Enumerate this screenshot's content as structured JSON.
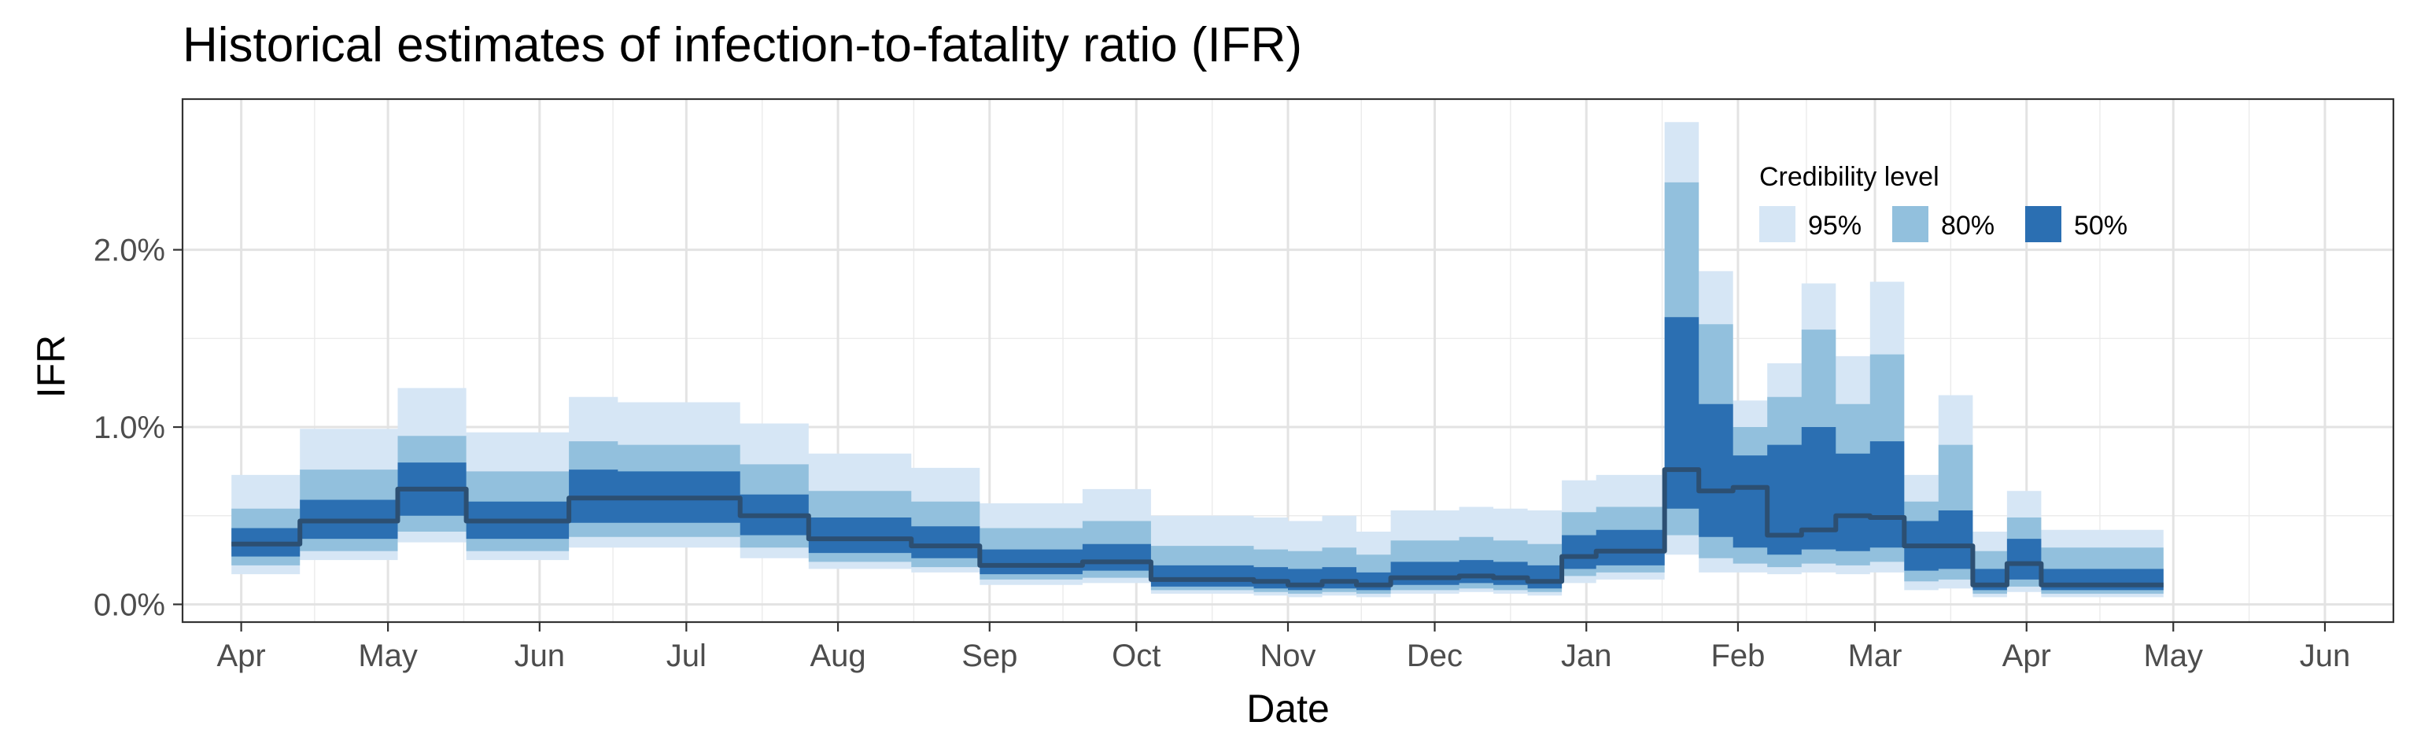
{
  "chart_data": {
    "type": "area",
    "title": "Historical estimates of infection-to-fatality ratio (IFR)",
    "xlabel": "Date",
    "ylabel": "IFR",
    "ylim": [
      -0.001,
      0.0285
    ],
    "xlim": [
      "2020-03-20",
      "2021-06-15"
    ],
    "grid": true,
    "legend": {
      "title": "Credibility level",
      "placement": "top-right"
    },
    "y_ticks": [
      {
        "value": 0.0,
        "label": "0.0%"
      },
      {
        "value": 0.01,
        "label": "1.0%"
      },
      {
        "value": 0.02,
        "label": "2.0%"
      }
    ],
    "x_ticks": [
      {
        "date": "2020-04-01",
        "label": "Apr"
      },
      {
        "date": "2020-05-01",
        "label": "May"
      },
      {
        "date": "2020-06-01",
        "label": "Jun"
      },
      {
        "date": "2020-07-01",
        "label": "Jul"
      },
      {
        "date": "2020-08-01",
        "label": "Aug"
      },
      {
        "date": "2020-09-01",
        "label": "Sep"
      },
      {
        "date": "2020-10-01",
        "label": "Oct"
      },
      {
        "date": "2020-11-01",
        "label": "Nov"
      },
      {
        "date": "2020-12-01",
        "label": "Dec"
      },
      {
        "date": "2021-01-01",
        "label": "Jan"
      },
      {
        "date": "2021-02-01",
        "label": "Feb"
      },
      {
        "date": "2021-03-01",
        "label": "Mar"
      },
      {
        "date": "2021-04-01",
        "label": "Apr"
      },
      {
        "date": "2021-05-01",
        "label": "May"
      },
      {
        "date": "2021-06-01",
        "label": "Jun"
      }
    ],
    "bands": [
      {
        "name": "95%",
        "color": "#d6e6f5"
      },
      {
        "name": "80%",
        "color": "#92c0dd"
      },
      {
        "name": "50%",
        "color": "#2b6fb2"
      }
    ],
    "median_color": "#2c4f72",
    "segments": [
      {
        "start": "2020-03-30",
        "end": "2020-04-13",
        "median": 0.0034,
        "l95": 0.0017,
        "u95": 0.0073,
        "l80": 0.0022,
        "u80": 0.0054,
        "l50": 0.0027,
        "u50": 0.0043
      },
      {
        "start": "2020-04-13",
        "end": "2020-05-03",
        "median": 0.0047,
        "l95": 0.0025,
        "u95": 0.0099,
        "l80": 0.003,
        "u80": 0.0076,
        "l50": 0.0037,
        "u50": 0.0059
      },
      {
        "start": "2020-05-03",
        "end": "2020-05-17",
        "median": 0.0065,
        "l95": 0.0035,
        "u95": 0.0122,
        "l80": 0.0041,
        "u80": 0.0095,
        "l50": 0.005,
        "u50": 0.008
      },
      {
        "start": "2020-05-17",
        "end": "2020-06-07",
        "median": 0.0047,
        "l95": 0.0025,
        "u95": 0.0097,
        "l80": 0.003,
        "u80": 0.0075,
        "l50": 0.0037,
        "u50": 0.0058
      },
      {
        "start": "2020-06-07",
        "end": "2020-06-17",
        "median": 0.006,
        "l95": 0.0032,
        "u95": 0.0117,
        "l80": 0.0038,
        "u80": 0.0092,
        "l50": 0.0046,
        "u50": 0.0076
      },
      {
        "start": "2020-06-17",
        "end": "2020-07-12",
        "median": 0.006,
        "l95": 0.0032,
        "u95": 0.0114,
        "l80": 0.0038,
        "u80": 0.009,
        "l50": 0.0046,
        "u50": 0.0075
      },
      {
        "start": "2020-07-12",
        "end": "2020-07-26",
        "median": 0.005,
        "l95": 0.0026,
        "u95": 0.0102,
        "l80": 0.0032,
        "u80": 0.0079,
        "l50": 0.0039,
        "u50": 0.0062
      },
      {
        "start": "2020-07-26",
        "end": "2020-08-16",
        "median": 0.0037,
        "l95": 0.002,
        "u95": 0.0085,
        "l80": 0.0024,
        "u80": 0.0064,
        "l50": 0.0029,
        "u50": 0.0049
      },
      {
        "start": "2020-08-16",
        "end": "2020-08-30",
        "median": 0.0033,
        "l95": 0.0018,
        "u95": 0.0077,
        "l80": 0.0021,
        "u80": 0.0058,
        "l50": 0.0026,
        "u50": 0.0044
      },
      {
        "start": "2020-08-30",
        "end": "2020-09-20",
        "median": 0.0022,
        "l95": 0.0011,
        "u95": 0.0057,
        "l80": 0.0014,
        "u80": 0.0043,
        "l50": 0.0017,
        "u50": 0.0031
      },
      {
        "start": "2020-09-20",
        "end": "2020-10-04",
        "median": 0.0024,
        "l95": 0.0012,
        "u95": 0.0065,
        "l80": 0.0015,
        "u80": 0.0047,
        "l50": 0.0019,
        "u50": 0.0034
      },
      {
        "start": "2020-10-04",
        "end": "2020-10-25",
        "median": 0.0014,
        "l95": 0.0006,
        "u95": 0.005,
        "l80": 0.0008,
        "u80": 0.0033,
        "l50": 0.001,
        "u50": 0.0022
      },
      {
        "start": "2020-10-25",
        "end": "2020-11-01",
        "median": 0.0013,
        "l95": 0.0005,
        "u95": 0.0049,
        "l80": 0.0007,
        "u80": 0.0031,
        "l50": 0.0009,
        "u50": 0.0021
      },
      {
        "start": "2020-11-01",
        "end": "2020-11-08",
        "median": 0.0011,
        "l95": 0.0004,
        "u95": 0.0047,
        "l80": 0.0006,
        "u80": 0.003,
        "l50": 0.0008,
        "u50": 0.002
      },
      {
        "start": "2020-11-08",
        "end": "2020-11-15",
        "median": 0.0013,
        "l95": 0.0005,
        "u95": 0.005,
        "l80": 0.0007,
        "u80": 0.0032,
        "l50": 0.0009,
        "u50": 0.0021
      },
      {
        "start": "2020-11-15",
        "end": "2020-11-22",
        "median": 0.0011,
        "l95": 0.0004,
        "u95": 0.0041,
        "l80": 0.0006,
        "u80": 0.0028,
        "l50": 0.0008,
        "u50": 0.0018
      },
      {
        "start": "2020-11-22",
        "end": "2020-12-06",
        "median": 0.0015,
        "l95": 0.0006,
        "u95": 0.0053,
        "l80": 0.0008,
        "u80": 0.0036,
        "l50": 0.0011,
        "u50": 0.0024
      },
      {
        "start": "2020-12-06",
        "end": "2020-12-13",
        "median": 0.0016,
        "l95": 0.0007,
        "u95": 0.0055,
        "l80": 0.0009,
        "u80": 0.0038,
        "l50": 0.0012,
        "u50": 0.0025
      },
      {
        "start": "2020-12-13",
        "end": "2020-12-20",
        "median": 0.0015,
        "l95": 0.0006,
        "u95": 0.0054,
        "l80": 0.0008,
        "u80": 0.0036,
        "l50": 0.0011,
        "u50": 0.0024
      },
      {
        "start": "2020-12-20",
        "end": "2020-12-27",
        "median": 0.0013,
        "l95": 0.0005,
        "u95": 0.0053,
        "l80": 0.0007,
        "u80": 0.0034,
        "l50": 0.0009,
        "u50": 0.0022
      },
      {
        "start": "2020-12-27",
        "end": "2021-01-03",
        "median": 0.0027,
        "l95": 0.0012,
        "u95": 0.007,
        "l80": 0.0016,
        "u80": 0.0052,
        "l50": 0.002,
        "u50": 0.0039
      },
      {
        "start": "2021-01-03",
        "end": "2021-01-17",
        "median": 0.003,
        "l95": 0.0014,
        "u95": 0.0073,
        "l80": 0.0018,
        "u80": 0.0055,
        "l50": 0.0022,
        "u50": 0.0042
      },
      {
        "start": "2021-01-17",
        "end": "2021-01-24",
        "median": 0.0076,
        "l95": 0.0028,
        "u95": 0.0272,
        "l80": 0.0039,
        "u80": 0.0238,
        "l50": 0.0054,
        "u50": 0.0162
      },
      {
        "start": "2021-01-24",
        "end": "2021-01-31",
        "median": 0.0064,
        "l95": 0.0018,
        "u95": 0.0188,
        "l80": 0.0026,
        "u80": 0.0158,
        "l50": 0.0038,
        "u50": 0.0113
      },
      {
        "start": "2021-01-31",
        "end": "2021-02-07",
        "median": 0.0066,
        "l95": 0.0018,
        "u95": 0.0115,
        "l80": 0.0023,
        "u80": 0.01,
        "l50": 0.0032,
        "u50": 0.0084
      },
      {
        "start": "2021-02-07",
        "end": "2021-02-14",
        "median": 0.0039,
        "l95": 0.0017,
        "u95": 0.0136,
        "l80": 0.0021,
        "u80": 0.0117,
        "l50": 0.0028,
        "u50": 0.009
      },
      {
        "start": "2021-02-14",
        "end": "2021-02-21",
        "median": 0.0042,
        "l95": 0.0018,
        "u95": 0.0181,
        "l80": 0.0023,
        "u80": 0.0155,
        "l50": 0.0031,
        "u50": 0.01
      },
      {
        "start": "2021-02-21",
        "end": "2021-02-28",
        "median": 0.005,
        "l95": 0.0017,
        "u95": 0.014,
        "l80": 0.0022,
        "u80": 0.0113,
        "l50": 0.003,
        "u50": 0.0085
      },
      {
        "start": "2021-02-28",
        "end": "2021-03-07",
        "median": 0.0049,
        "l95": 0.0018,
        "u95": 0.0182,
        "l80": 0.0024,
        "u80": 0.0141,
        "l50": 0.0032,
        "u50": 0.0092
      },
      {
        "start": "2021-03-07",
        "end": "2021-03-14",
        "median": 0.0033,
        "l95": 0.0008,
        "u95": 0.0073,
        "l80": 0.0013,
        "u80": 0.0058,
        "l50": 0.0019,
        "u50": 0.0047
      },
      {
        "start": "2021-03-14",
        "end": "2021-03-21",
        "median": 0.0033,
        "l95": 0.0009,
        "u95": 0.0118,
        "l80": 0.0014,
        "u80": 0.009,
        "l50": 0.002,
        "u50": 0.0053
      },
      {
        "start": "2021-03-21",
        "end": "2021-03-28",
        "median": 0.0011,
        "l95": 0.0004,
        "u95": 0.0041,
        "l80": 0.0006,
        "u80": 0.003,
        "l50": 0.0008,
        "u50": 0.002
      },
      {
        "start": "2021-03-28",
        "end": "2021-04-04",
        "median": 0.0023,
        "l95": 0.0007,
        "u95": 0.0064,
        "l80": 0.001,
        "u80": 0.0049,
        "l50": 0.0014,
        "u50": 0.0037
      },
      {
        "start": "2021-04-04",
        "end": "2021-04-29",
        "median": 0.0011,
        "l95": 0.0004,
        "u95": 0.0042,
        "l80": 0.0006,
        "u80": 0.0032,
        "l50": 0.0008,
        "u50": 0.002
      }
    ]
  }
}
